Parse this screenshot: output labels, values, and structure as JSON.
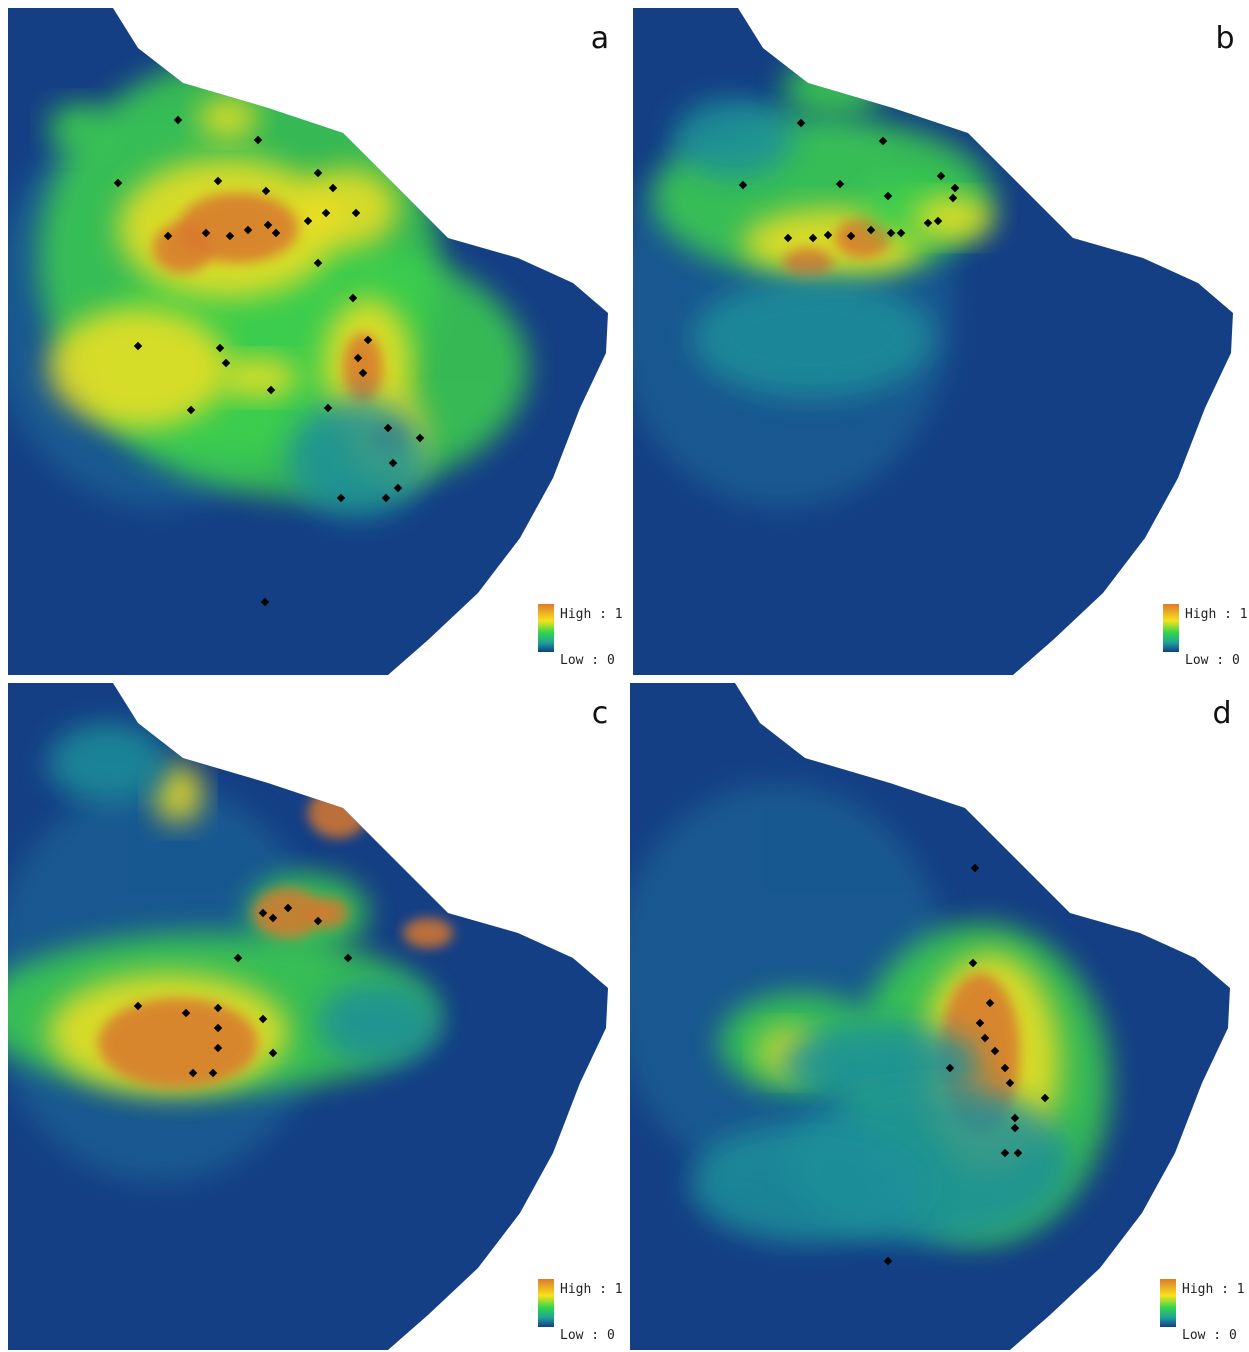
{
  "panels": [
    {
      "label": "a",
      "legend": {
        "high": "High : 1",
        "low": "Low : 0"
      }
    },
    {
      "label": "b",
      "legend": {
        "high": "High : 1",
        "low": "Low : 0"
      }
    },
    {
      "label": "c",
      "legend": {
        "high": "High : 1",
        "low": "Low : 0"
      }
    },
    {
      "label": "d",
      "legend": {
        "high": "High : 1",
        "low": "Low : 0"
      }
    }
  ]
}
